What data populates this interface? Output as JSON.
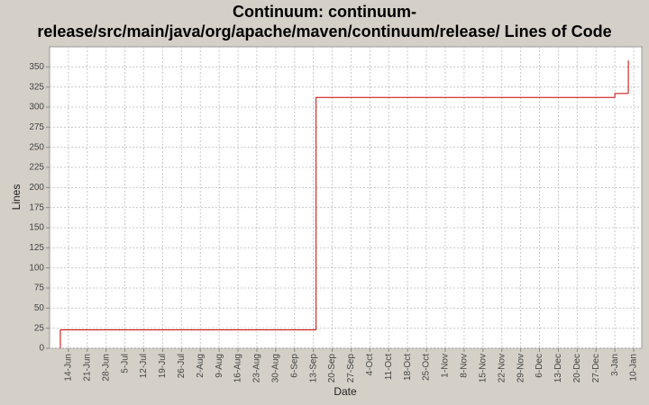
{
  "chart_data": {
    "type": "step",
    "title": [
      "Continuum: continuum-",
      "release/src/main/java/org/apache/maven/continuum/release/ Lines of Code"
    ],
    "x_label": "Date",
    "y_label": "Lines",
    "x": [
      -3,
      -3,
      92,
      203,
      208
    ],
    "series": [
      {
        "name": "Lines",
        "color": "#cc0000",
        "values": [
          0,
          23,
          312,
          317,
          358
        ]
      }
    ],
    "xlim": [
      -7,
      213
    ],
    "xticks": [
      {
        "value": 0,
        "label": "14-Jun"
      },
      {
        "value": 7,
        "label": "21-Jun"
      },
      {
        "value": 14,
        "label": "28-Jun"
      },
      {
        "value": 21,
        "label": "5-Jul"
      },
      {
        "value": 28,
        "label": "12-Jul"
      },
      {
        "value": 35,
        "label": "19-Jul"
      },
      {
        "value": 42,
        "label": "26-Jul"
      },
      {
        "value": 49,
        "label": "2-Aug"
      },
      {
        "value": 56,
        "label": "9-Aug"
      },
      {
        "value": 63,
        "label": "16-Aug"
      },
      {
        "value": 70,
        "label": "23-Aug"
      },
      {
        "value": 77,
        "label": "30-Aug"
      },
      {
        "value": 84,
        "label": "6-Sep"
      },
      {
        "value": 91,
        "label": "13-Sep"
      },
      {
        "value": 98,
        "label": "20-Sep"
      },
      {
        "value": 105,
        "label": "27-Sep"
      },
      {
        "value": 112,
        "label": "4-Oct"
      },
      {
        "value": 119,
        "label": "11-Oct"
      },
      {
        "value": 126,
        "label": "18-Oct"
      },
      {
        "value": 133,
        "label": "25-Oct"
      },
      {
        "value": 140,
        "label": "1-Nov"
      },
      {
        "value": 147,
        "label": "8-Nov"
      },
      {
        "value": 154,
        "label": "15-Nov"
      },
      {
        "value": 161,
        "label": "22-Nov"
      },
      {
        "value": 168,
        "label": "29-Nov"
      },
      {
        "value": 175,
        "label": "6-Dec"
      },
      {
        "value": 182,
        "label": "13-Dec"
      },
      {
        "value": 189,
        "label": "20-Dec"
      },
      {
        "value": 196,
        "label": "27-Dec"
      },
      {
        "value": 203,
        "label": "3-Jan"
      },
      {
        "value": 210,
        "label": "10-Jan"
      }
    ],
    "ylim": [
      0,
      375
    ],
    "yticks": [
      0,
      25,
      50,
      75,
      100,
      125,
      150,
      175,
      200,
      225,
      250,
      275,
      300,
      325,
      350
    ],
    "grid": true
  }
}
